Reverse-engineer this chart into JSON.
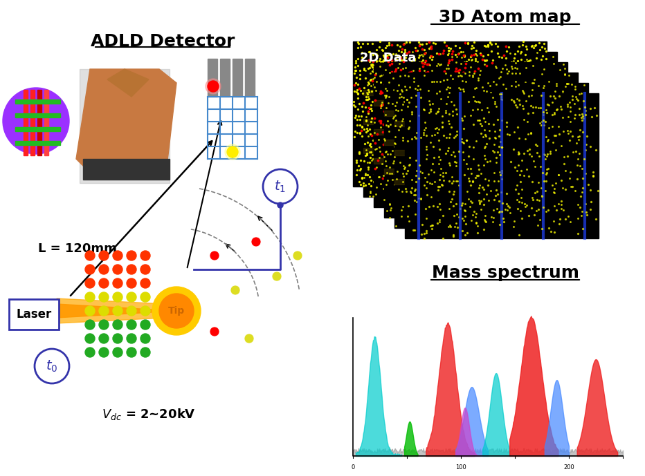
{
  "title": "ADLD Detector",
  "label_3d_atom_map": "3D Atom map",
  "label_2d_data": "2D Data",
  "label_mass_spectrum": "Mass spectrum",
  "label_laser": "Laser",
  "label_tip": "Tip",
  "label_L": "L = 120mm",
  "label_Vdc": "V$_{dc}$ = 2~20kV",
  "label_t0": "t$_0$",
  "label_t1": "t$_1$",
  "bg_color": "#ffffff"
}
